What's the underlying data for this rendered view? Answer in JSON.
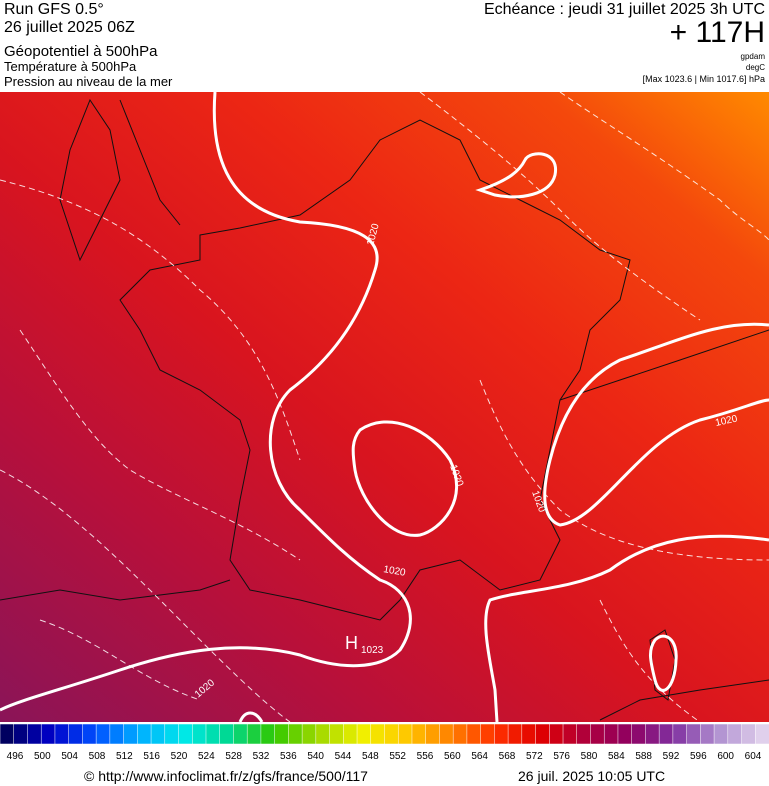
{
  "header": {
    "run": "Run GFS 0.5°",
    "date": "26 juillet 2025 06Z",
    "layers": [
      "Géopotentiel à 500hPa",
      "Température à 500hPa",
      "Pression au niveau de la mer"
    ],
    "echeance": "Echéance : jeudi 31 juillet 2025 3h UTC",
    "offset": "+ 117H",
    "units": [
      "gpdam",
      "degC"
    ],
    "range": "[Max 1023.6 | Min 1017.6] hPa"
  },
  "map": {
    "isobar_labels": [
      "1020",
      "1020",
      "1020",
      "1020",
      "1020",
      "1020"
    ],
    "high": {
      "letter": "H",
      "value": "1023"
    }
  },
  "legend": {
    "labels": [
      496,
      500,
      504,
      508,
      512,
      516,
      520,
      524,
      528,
      532,
      536,
      540,
      544,
      548,
      552,
      556,
      560,
      564,
      568,
      572,
      576,
      580,
      584,
      588,
      592,
      596,
      600,
      604
    ]
  },
  "footer": {
    "source": "© http://www.infoclimat.fr/z/gfs/france/500/117",
    "timestamp": "26 juil. 2025 10:05 UTC"
  }
}
